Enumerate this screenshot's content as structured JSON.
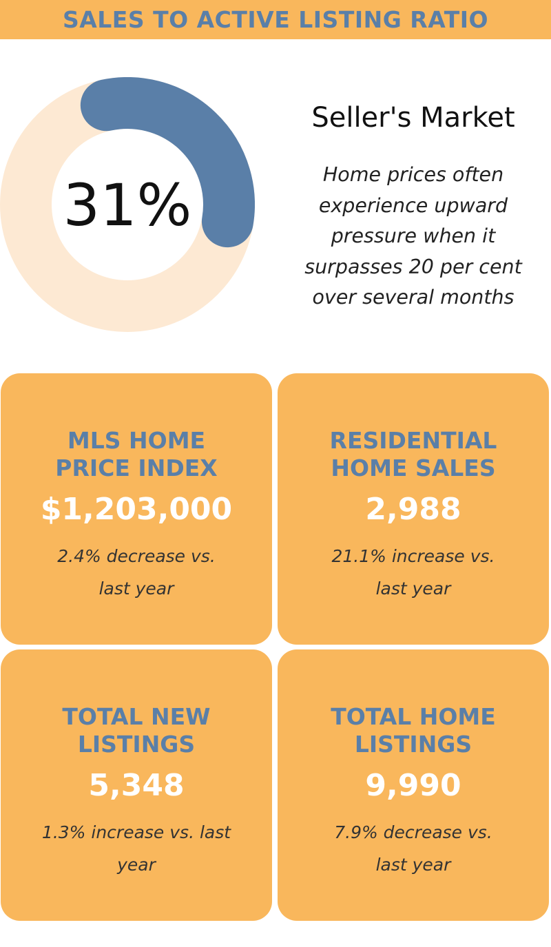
{
  "header": {
    "title": "SALES TO ACTIVE LISTING RATIO"
  },
  "chart_data": {
    "type": "pie",
    "subtype": "donut",
    "value_percent": 31,
    "center_label": "31%",
    "colors": {
      "track": "#fde9d3",
      "fill": "#5a7fa8"
    }
  },
  "market": {
    "title": "Seller's Market",
    "description_lines": [
      "Home prices often",
      "experience upward",
      "pressure when it",
      "surpasses 20 per cent",
      "over several months"
    ]
  },
  "cards": [
    {
      "title_lines": [
        "MLS HOME",
        "PRICE INDEX"
      ],
      "value": "$1,203,000",
      "change_lines": [
        "2.4% decrease vs.",
        "last year"
      ]
    },
    {
      "title_lines": [
        "RESIDENTIAL",
        "HOME SALES"
      ],
      "value": "2,988",
      "change_lines": [
        "21.1% increase vs.",
        "last year"
      ]
    },
    {
      "title_lines": [
        "TOTAL NEW",
        "LISTINGS"
      ],
      "value": "5,348",
      "change_lines": [
        "1.3% increase vs. last",
        "year"
      ]
    },
    {
      "title_lines": [
        "TOTAL HOME",
        "LISTINGS"
      ],
      "value": "9,990",
      "change_lines": [
        "7.9% decrease vs.",
        "last year"
      ]
    }
  ],
  "colors": {
    "accent": "#f9b75c",
    "title_blue": "#5a7fa8",
    "value_white": "#ffffff"
  }
}
